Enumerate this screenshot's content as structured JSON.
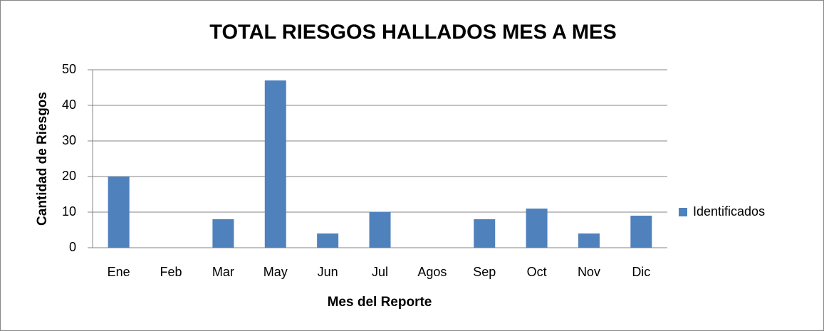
{
  "chart_data": {
    "type": "bar",
    "title": "TOTAL RIESGOS HALLADOS MES A MES",
    "x_label": "Mes del Reporte",
    "y_label": "Cantidad de Riesgos",
    "categories": [
      "Ene",
      "Feb",
      "Mar",
      "May",
      "Jun",
      "Jul",
      "Agos",
      "Sep",
      "Oct",
      "Nov",
      "Dic"
    ],
    "series": [
      {
        "name": "Identificados",
        "color": "#4f81bd",
        "values": [
          20,
          0,
          8,
          47,
          4,
          10,
          0,
          8,
          11,
          4,
          9
        ]
      }
    ],
    "ylim": [
      0,
      50
    ],
    "yticks": [
      0,
      10,
      20,
      30,
      40,
      50
    ],
    "grid": true,
    "legend": "right"
  }
}
